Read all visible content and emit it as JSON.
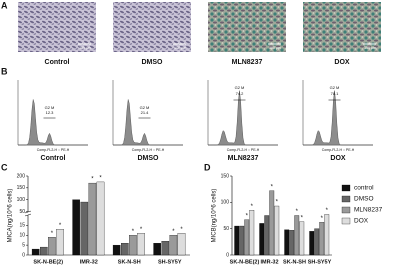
{
  "panels": {
    "A": {
      "label": "A",
      "images": [
        {
          "label": "Control",
          "scale": "100 μm"
        },
        {
          "label": "DMSO",
          "scale": "100 μm"
        },
        {
          "label": "MLN8237",
          "scale": "100 μm"
        },
        {
          "label": "DOX",
          "scale": "100 μm"
        }
      ]
    },
    "B": {
      "label": "B",
      "x_axis_label": "Comp-FL2-H :: PE-H",
      "histograms": [
        {
          "label": "Control",
          "gate": "G2 M",
          "percent": 12.3
        },
        {
          "label": "DMSO",
          "gate": "G2 M",
          "percent": 21.4
        },
        {
          "label": "MLN8237",
          "gate": "G2 M",
          "percent": 74.2
        },
        {
          "label": "DOX",
          "gate": "G2 M",
          "percent": 78.1
        }
      ]
    },
    "C": {
      "label": "C"
    },
    "D": {
      "label": "D"
    }
  },
  "chart_data": [
    {
      "type": "bar",
      "ylabel": "MICA(ng/10^6 cells)",
      "categories": [
        "SK-N-BE(2)",
        "IMR-32",
        "SK-N-SH",
        "SH-SY5Y"
      ],
      "series": [
        {
          "color": "#111111",
          "values": [
            3,
            100,
            5,
            6
          ],
          "annotations": [
            null,
            null,
            null,
            null
          ]
        },
        {
          "color": "#666666",
          "values": [
            4,
            90,
            6,
            7
          ],
          "annotations": [
            null,
            null,
            null,
            null
          ]
        },
        {
          "color": "#9a9a9a",
          "values": [
            9,
            170,
            10,
            10
          ],
          "annotations": [
            "*",
            "*",
            "*",
            "*"
          ]
        },
        {
          "color": "#dddddd",
          "values": [
            13,
            175,
            11,
            11
          ],
          "annotations": [
            "*",
            "*",
            "*",
            "*"
          ]
        }
      ],
      "ylim": [
        0,
        200
      ],
      "ybreak": [
        20,
        50
      ],
      "yticks": [
        0,
        5,
        10,
        15,
        50,
        100,
        150,
        200
      ],
      "legend": false
    },
    {
      "type": "bar",
      "ylabel": "MICB(ng/10^6 cells)",
      "categories": [
        "SK-N-BE(2)",
        "IMR-32",
        "SK-N-SH",
        "SH-SY5Y"
      ],
      "series": [
        {
          "name": "control",
          "color": "#111111",
          "values": [
            55,
            60,
            48,
            45
          ],
          "annotations": [
            null,
            null,
            null,
            null
          ]
        },
        {
          "name": "DMSO",
          "color": "#666666",
          "values": [
            55,
            75,
            47,
            50
          ],
          "annotations": [
            null,
            null,
            null,
            null
          ]
        },
        {
          "name": "MLN8237",
          "color": "#9a9a9a",
          "values": [
            67,
            122,
            75,
            62
          ],
          "annotations": [
            "*",
            "*",
            "*",
            "*"
          ]
        },
        {
          "name": "DOX",
          "color": "#dddddd",
          "values": [
            85,
            93,
            63,
            77
          ],
          "annotations": [
            "*",
            "*",
            "*",
            "*"
          ]
        }
      ],
      "ylim": [
        0,
        150
      ],
      "yticks": [
        0,
        50,
        100,
        150
      ],
      "legend": true
    }
  ]
}
